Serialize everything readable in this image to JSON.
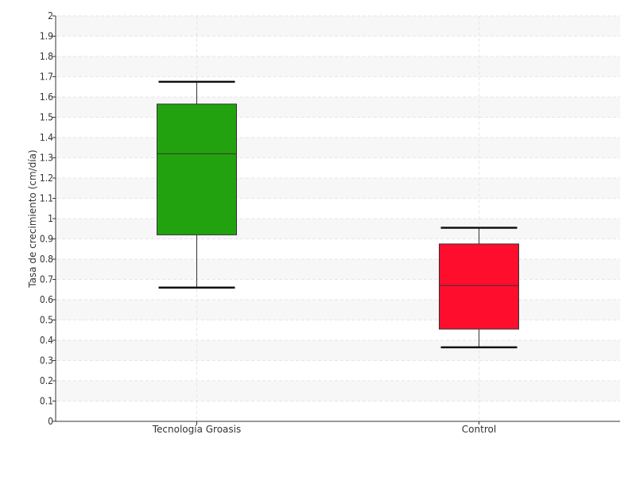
{
  "chart_data": {
    "type": "box",
    "title": "",
    "xlabel": "",
    "ylabel": "Tasa de crecimiento (cm/día)",
    "ylim": [
      0,
      2
    ],
    "yticks": [
      "0",
      "0.1",
      "0.2",
      "0.3",
      "0.4",
      "0.5",
      "0.6",
      "0.7",
      "0.8",
      "0.9",
      "1",
      "1.1",
      "1.2",
      "1.3",
      "1.4",
      "1.5",
      "1.6",
      "1.7",
      "1.8",
      "1.9",
      "2"
    ],
    "grid": true,
    "categories": [
      "Tecnología Groasis",
      "Control"
    ],
    "boxes": [
      {
        "whisker_low": 0.66,
        "q1": 0.92,
        "median": 1.32,
        "q3": 1.565,
        "whisker_high": 1.675,
        "color": "#22a20e"
      },
      {
        "whisker_low": 0.365,
        "q1": 0.455,
        "median": 0.67,
        "q3": 0.875,
        "whisker_high": 0.955,
        "color": "#ff0d2c"
      }
    ]
  }
}
